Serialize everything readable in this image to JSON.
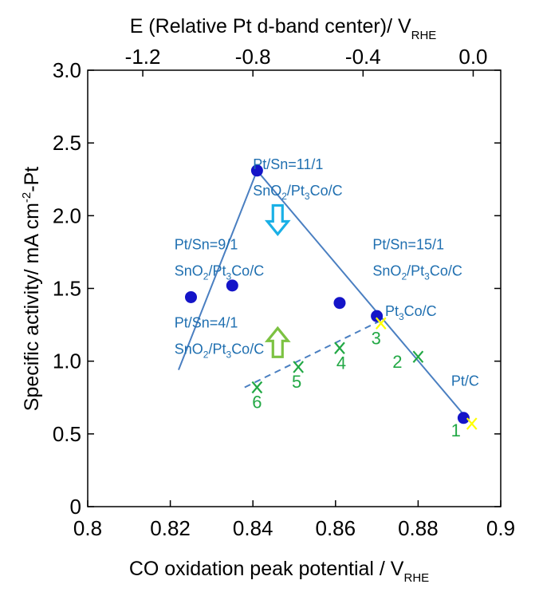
{
  "chart_data": {
    "type": "scatter",
    "xlabel": "CO oxidation peak potential / V",
    "xlabel_sub": "RHE",
    "x2label": "E (Relative Pt d-band center)/ V",
    "x2label_sub": "RHE",
    "ylabel_main": "Specific activity/ mA cm",
    "ylabel_sup": "-2",
    "ylabel_tail": "-Pt",
    "xlim": [
      0.8,
      0.9
    ],
    "ylim": [
      0,
      3.0
    ],
    "x2lim": [
      -1.4,
      0.1
    ],
    "x_ticks": [
      "0.8",
      "0.82",
      "0.84",
      "0.86",
      "0.88",
      "0.9"
    ],
    "x_tick_values": [
      0.8,
      0.82,
      0.84,
      0.86,
      0.88,
      0.9
    ],
    "y_ticks": [
      "0",
      "0.5",
      "1.0",
      "1.5",
      "2.0",
      "2.5",
      "3.0"
    ],
    "y_tick_values": [
      0,
      0.5,
      1.0,
      1.5,
      2.0,
      2.5,
      3.0
    ],
    "x2_ticks": [
      "-1.2",
      "-0.8",
      "-0.4",
      "0.0"
    ],
    "x2_tick_values": [
      -1.2,
      -0.8,
      -0.4,
      0.0
    ],
    "series": [
      {
        "marker": "circle",
        "color": "#1414c8",
        "points": [
          {
            "x": 0.825,
            "y": 1.44
          },
          {
            "x": 0.835,
            "y": 1.52
          },
          {
            "x": 0.841,
            "y": 2.31
          },
          {
            "x": 0.861,
            "y": 1.4
          },
          {
            "x": 0.87,
            "y": 1.31
          },
          {
            "x": 0.891,
            "y": 0.61
          }
        ]
      },
      {
        "marker": "x",
        "color": "#22a845",
        "points": [
          {
            "x": 0.893,
            "y": 0.57,
            "label": "1",
            "color": "#ffff00"
          },
          {
            "x": 0.88,
            "y": 1.03,
            "label": "2"
          },
          {
            "x": 0.871,
            "y": 1.26,
            "label": "3",
            "color": "#ffff00"
          },
          {
            "x": 0.861,
            "y": 1.09,
            "label": "4"
          },
          {
            "x": 0.851,
            "y": 0.96,
            "label": "5"
          },
          {
            "x": 0.841,
            "y": 0.82,
            "label": "6"
          }
        ]
      }
    ],
    "lines": [
      {
        "style": "solid",
        "color": "#4a7fc1",
        "points": [
          [
            0.822,
            0.94
          ],
          [
            0.841,
            2.31
          ],
          [
            0.892,
            0.6
          ]
        ]
      },
      {
        "style": "dashed",
        "color": "#4a7fc1",
        "points": [
          [
            0.838,
            0.82
          ],
          [
            0.871,
            1.28
          ]
        ]
      }
    ],
    "annotations": [
      {
        "lines": [
          "Pt/Sn=11/1",
          "SnO2/Pt3Co/C"
        ],
        "x": 0.84,
        "y": 2.32
      },
      {
        "lines": [
          "Pt/Sn=9/1",
          "SnO2/Pt3Co/C"
        ],
        "x": 0.821,
        "y": 1.77
      },
      {
        "lines": [
          "Pt/Sn=4/1",
          "SnO2/Pt3Co/C"
        ],
        "x": 0.821,
        "y": 1.23
      },
      {
        "lines": [
          "Pt/Sn=15/1",
          "SnO2/Pt3Co/C"
        ],
        "x": 0.869,
        "y": 1.77
      },
      {
        "lines": [
          "Pt3Co/C"
        ],
        "x": 0.872,
        "y": 1.31
      },
      {
        "lines": [
          "Pt/C"
        ],
        "x": 0.888,
        "y": 0.83
      }
    ],
    "arrows": [
      {
        "direction": "down",
        "color": "#1ab0e6",
        "x": 0.846,
        "y": 1.95
      },
      {
        "direction": "up",
        "color": "#7cc242",
        "x": 0.846,
        "y": 1.15
      }
    ],
    "grid": false,
    "legend": "none"
  }
}
